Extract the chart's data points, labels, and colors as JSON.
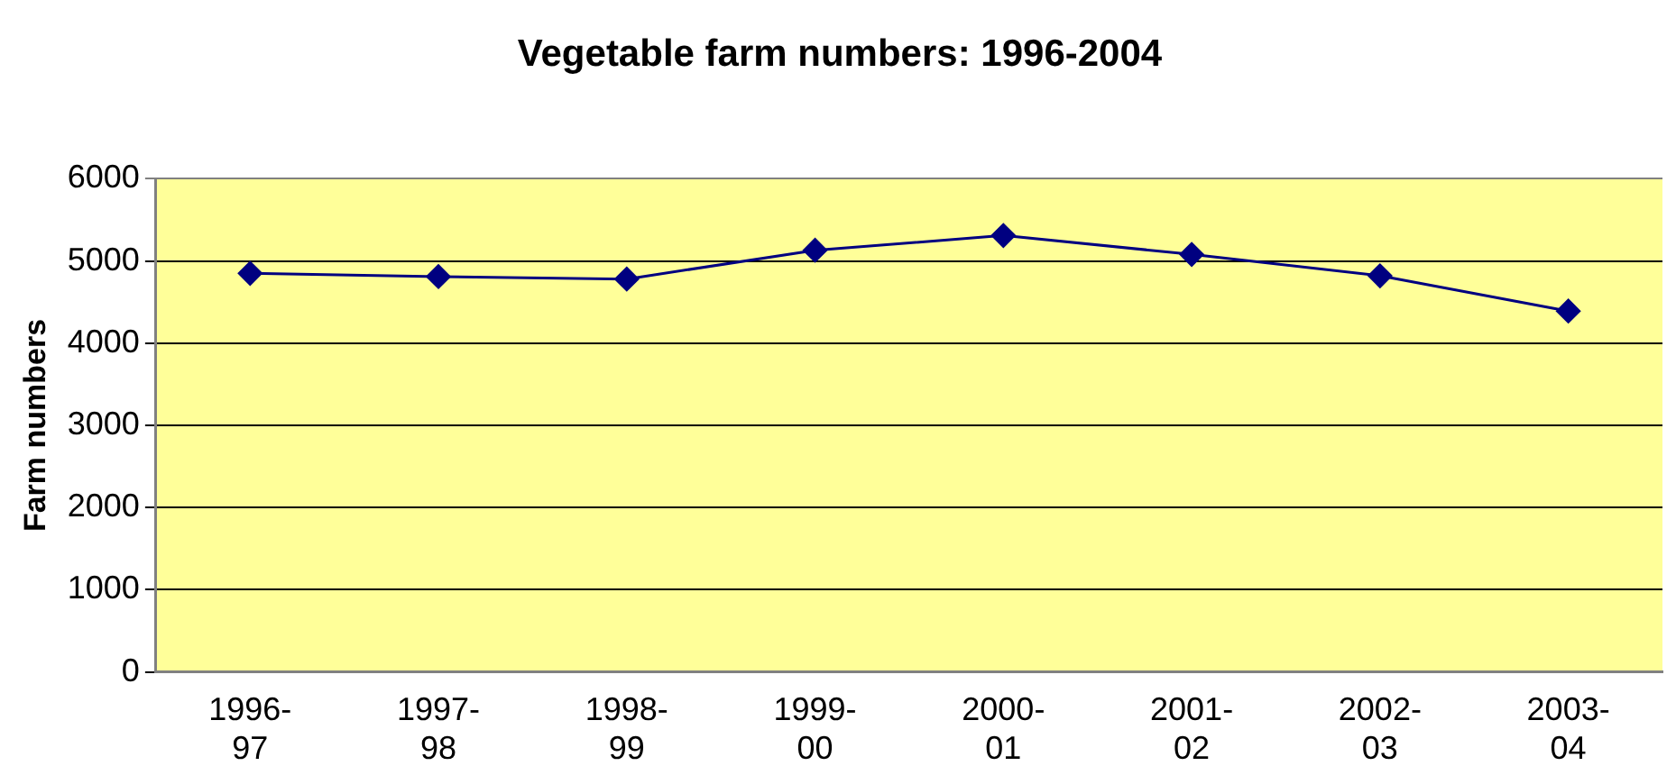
{
  "chart_data": {
    "type": "line",
    "title": "Vegetable farm numbers: 1996-2004",
    "ylabel": "Farm numbers",
    "categories": [
      "1996-97",
      "1997-98",
      "1998-99",
      "1999-00",
      "2000-01",
      "2001-02",
      "2002-03",
      "2003-04"
    ],
    "series": [
      {
        "color": "#000080",
        "values": [
          4850,
          4810,
          4780,
          5130,
          5310,
          5080,
          4820,
          4390
        ]
      }
    ],
    "ylim": [
      0,
      6000
    ],
    "yticks": [
      0,
      1000,
      2000,
      3000,
      4000,
      5000,
      6000
    ],
    "grid": "y",
    "legend": false,
    "marker": "diamond",
    "line_style": "solid"
  }
}
